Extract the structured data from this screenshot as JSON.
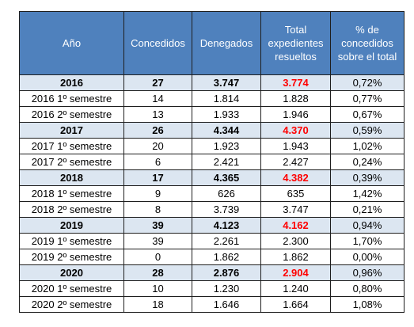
{
  "headers": {
    "year": "Año",
    "granted": "Concedidos",
    "denied": "Denegados",
    "total": [
      "Total",
      "expedientes",
      "resueltos"
    ],
    "percent": [
      "% de",
      "concedidos",
      "sobre el total"
    ]
  },
  "rows": [
    {
      "type": "year",
      "year": "2016",
      "granted": "27",
      "denied": "3.747",
      "total": "3.774",
      "percent": "0,72%"
    },
    {
      "type": "semester",
      "year": "2016 1º semestre",
      "granted": "14",
      "denied": "1.814",
      "total": "1.828",
      "percent": "0,77%"
    },
    {
      "type": "semester",
      "year": "2016 2º semestre",
      "granted": "13",
      "denied": "1.933",
      "total": "1.946",
      "percent": "0,67%"
    },
    {
      "type": "year",
      "year": "2017",
      "granted": "26",
      "denied": "4.344",
      "total": "4.370",
      "percent": "0,59%"
    },
    {
      "type": "semester",
      "year": "2017 1º semestre",
      "granted": "20",
      "denied": "1.923",
      "total": "1.943",
      "percent": "1,02%"
    },
    {
      "type": "semester",
      "year": "2017 2º semestre",
      "granted": "6",
      "denied": "2.421",
      "total": "2.427",
      "percent": "0,24%"
    },
    {
      "type": "year",
      "year": "2018",
      "granted": "17",
      "denied": "4.365",
      "total": "4.382",
      "percent": "0,39%"
    },
    {
      "type": "semester",
      "year": "2018 1º semestre",
      "granted": "9",
      "denied": "626",
      "total": "635",
      "percent": "1,42%"
    },
    {
      "type": "semester",
      "year": "2018 2º semestre",
      "granted": "8",
      "denied": "3.739",
      "total": "3.747",
      "percent": "0,21%"
    },
    {
      "type": "year",
      "year": "2019",
      "granted": "39",
      "denied": "4.123",
      "total": "4.162",
      "percent": "0,94%"
    },
    {
      "type": "semester",
      "year": "2019 1º semestre",
      "granted": "39",
      "denied": "2.261",
      "total": "2.300",
      "percent": "1,70%"
    },
    {
      "type": "semester",
      "year": "2019 2º semestre",
      "granted": "0",
      "denied": "1.862",
      "total": "1.862",
      "percent": "0,00%"
    },
    {
      "type": "year",
      "year": "2020",
      "granted": "28",
      "denied": "2.876",
      "total": "2.904",
      "percent": "0,96%"
    },
    {
      "type": "semester",
      "year": "2020 1º semestre",
      "granted": "10",
      "denied": "1.230",
      "total": "1.240",
      "percent": "0,80%"
    },
    {
      "type": "semester",
      "year": "2020 2º semestre",
      "granted": "18",
      "denied": "1.646",
      "total": "1.664",
      "percent": "1,08%"
    }
  ],
  "colors": {
    "header_bg": "#4f81bd",
    "header_text": "#ffffff",
    "year_row_bg": "#dce6f1",
    "total_highlight": "#ff0000",
    "border": "#1e1e1e"
  }
}
